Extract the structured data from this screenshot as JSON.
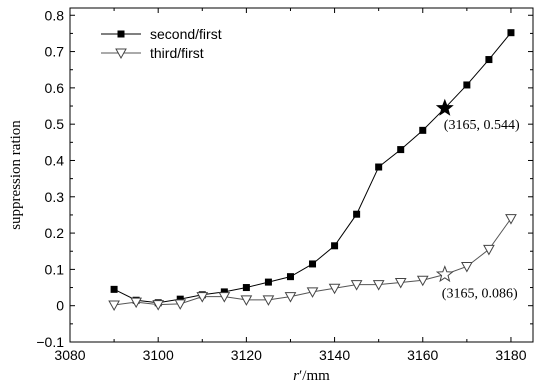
{
  "chart_data": {
    "type": "line",
    "xlabel": "r′/mm",
    "ylabel": "suppression ration",
    "xlim": [
      3080,
      3185
    ],
    "ylim": [
      -0.1,
      0.82
    ],
    "x_ticks": [
      3080,
      3100,
      3120,
      3140,
      3160,
      3180
    ],
    "y_ticks": [
      -0.1,
      0,
      0.1,
      0.2,
      0.3,
      0.4,
      0.5,
      0.6,
      0.7,
      0.8
    ],
    "x_tick_labels": [
      "3080",
      "3100",
      "3120",
      "3140",
      "3160",
      "3180"
    ],
    "y_tick_labels": [
      "−0.1",
      "0",
      "0.1",
      "0.2",
      "0.3",
      "0.4",
      "0.5",
      "0.6",
      "0.7",
      "0.8"
    ],
    "legend_position": "top-left",
    "grid": false,
    "series": [
      {
        "name": "second/first",
        "marker": "filled-square",
        "color": "#000000",
        "x": [
          3090,
          3095,
          3100,
          3105,
          3110,
          3115,
          3120,
          3125,
          3130,
          3135,
          3140,
          3145,
          3150,
          3155,
          3160,
          3165,
          3170,
          3175,
          3180
        ],
        "y": [
          0.045,
          0.015,
          0.008,
          0.018,
          0.03,
          0.038,
          0.05,
          0.065,
          0.08,
          0.115,
          0.165,
          0.252,
          0.382,
          0.43,
          0.483,
          0.544,
          0.608,
          0.678,
          0.752
        ]
      },
      {
        "name": "third/first",
        "marker": "open-triangle-down",
        "color": "#000000",
        "x": [
          3090,
          3095,
          3100,
          3105,
          3110,
          3115,
          3120,
          3125,
          3130,
          3135,
          3140,
          3145,
          3150,
          3155,
          3160,
          3165,
          3170,
          3175,
          3180
        ],
        "y": [
          0.002,
          0.01,
          0.003,
          0.005,
          0.025,
          0.025,
          0.016,
          0.016,
          0.025,
          0.038,
          0.048,
          0.058,
          0.058,
          0.064,
          0.07,
          0.086,
          0.108,
          0.155,
          0.24
        ]
      }
    ],
    "annotations": [
      {
        "x": 3165,
        "y": 0.544,
        "text": "(3165, 0.544)",
        "marker": "filled-star"
      },
      {
        "x": 3165,
        "y": 0.086,
        "text": "(3165, 0.086)",
        "marker": "open-star"
      }
    ]
  }
}
